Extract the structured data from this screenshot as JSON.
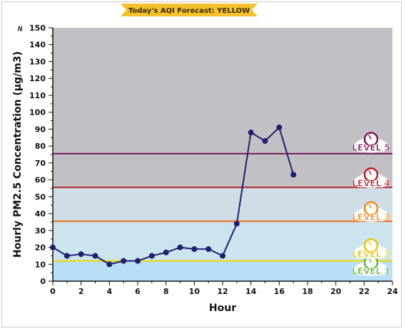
{
  "banner": {
    "text": "Today's AQI Forecast: YELLOW",
    "color": "#f6c12e"
  },
  "chart_data": {
    "type": "line",
    "title": "",
    "xlabel": "Hour",
    "ylabel": "Hourly PM2.5 Concentration (µg/m3)",
    "xlim": [
      0,
      24
    ],
    "ylim": [
      0,
      150
    ],
    "y_top_tick_prefix": "≥",
    "xticks": [
      0,
      2,
      4,
      6,
      8,
      10,
      12,
      14,
      16,
      18,
      20,
      22,
      24
    ],
    "yticks": [
      0,
      10,
      20,
      30,
      40,
      50,
      60,
      70,
      80,
      90,
      100,
      110,
      120,
      130,
      140,
      150
    ],
    "grid": false,
    "series": [
      {
        "x": [
          0,
          1,
          2,
          3,
          4,
          5,
          6,
          7,
          8,
          9,
          10,
          11,
          12,
          13,
          14,
          15,
          16,
          17
        ],
        "y": [
          20,
          15,
          16,
          15,
          10,
          12,
          12,
          15,
          17,
          20,
          19,
          19,
          15,
          34,
          88,
          83,
          91,
          63
        ],
        "color": "#1f1f6e"
      }
    ],
    "bands": [
      {
        "from": 0,
        "to": 12,
        "color": "#b8dff5"
      },
      {
        "from": 12,
        "to": 35.5,
        "color": "#cbe4ee"
      },
      {
        "from": 35.5,
        "to": 55.5,
        "color": "#cfdde6"
      },
      {
        "from": 55.5,
        "to": 150,
        "color": "#c2c0c4"
      }
    ],
    "thresholds": [
      {
        "value": 12,
        "color": "#f2d400"
      },
      {
        "value": 35.5,
        "color": "#f26b1d"
      },
      {
        "value": 55.5,
        "color": "#b5202a"
      },
      {
        "value": 75.5,
        "color": "#7b1a5e"
      }
    ],
    "levels": [
      {
        "label": "LEVEL 1",
        "y": 6,
        "color": "#5fb83a"
      },
      {
        "label": "LEVEL 2",
        "y": 16,
        "color": "#e8c400"
      },
      {
        "label": "LEVEL 3",
        "y": 38,
        "color": "#f28a1d"
      },
      {
        "label": "LEVEL 4",
        "y": 58,
        "color": "#b5202a"
      },
      {
        "label": "LEVEL 5",
        "y": 79,
        "color": "#7b1a5e"
      }
    ]
  }
}
